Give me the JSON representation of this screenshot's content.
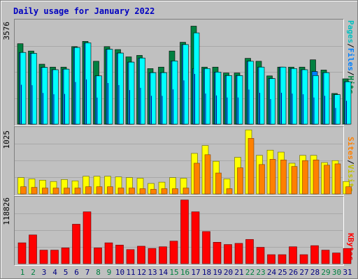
{
  "title": "Daily usage for January 2022",
  "panels": {
    "top": {
      "ymax_label": "3576",
      "legend": [
        "Pages",
        "Files",
        "Hits"
      ]
    },
    "middle": {
      "ymax_label": "1025",
      "legend": [
        "Sites",
        "Visits"
      ]
    },
    "bottom": {
      "ymax_label": "118826",
      "legend": [
        "KBytes"
      ]
    }
  },
  "legend_sep": "/",
  "colors": {
    "hits": "#008040",
    "files": "#0080ff",
    "pages": "#00ffff",
    "visits": "#ffff00",
    "sites": "#ff8000",
    "kbytes": "#ff0000",
    "weekend": "#008040",
    "weekday": "#000080"
  },
  "chart_data": [
    {
      "type": "bar",
      "title": "Daily usage for January 2022",
      "categories": [
        "1",
        "2",
        "3",
        "4",
        "5",
        "6",
        "7",
        "8",
        "9",
        "10",
        "11",
        "12",
        "13",
        "14",
        "15",
        "16",
        "17",
        "18",
        "19",
        "20",
        "21",
        "22",
        "23",
        "24",
        "25",
        "26",
        "27",
        "28",
        "29",
        "30",
        "31"
      ],
      "weekend_days": [
        "1",
        "2",
        "8",
        "9",
        "15",
        "16",
        "22",
        "23",
        "29",
        "30"
      ],
      "ylim": [
        0,
        3576
      ],
      "series": [
        {
          "name": "Hits",
          "values": [
            2750,
            2500,
            2050,
            1950,
            1950,
            2650,
            2830,
            2150,
            2650,
            2550,
            2300,
            2350,
            1900,
            1950,
            2500,
            2800,
            3350,
            1950,
            1950,
            1750,
            1750,
            2250,
            2150,
            1650,
            1950,
            1950,
            1950,
            2200,
            1850,
            1050,
            1550
          ]
        },
        {
          "name": "Files",
          "values": [
            2450,
            2420,
            1940,
            1860,
            1880,
            2620,
            2780,
            1650,
            2560,
            2430,
            2120,
            2260,
            1760,
            1760,
            2160,
            2720,
            1900,
            1900,
            1780,
            1660,
            1660,
            2150,
            1950,
            1560,
            1950,
            1900,
            1860,
            1800,
            1760,
            1010,
            1450
          ]
        },
        {
          "name": "Pages",
          "values": [
            2450,
            2420,
            1940,
            1860,
            1880,
            2620,
            2780,
            1650,
            2560,
            2430,
            2120,
            2260,
            1760,
            1760,
            2160,
            2720,
            3120,
            1900,
            1780,
            1660,
            1660,
            2150,
            1950,
            1560,
            1950,
            1900,
            1860,
            1660,
            1760,
            1010,
            1450
          ]
        }
      ]
    },
    {
      "type": "bar",
      "categories": [
        "1",
        "2",
        "3",
        "4",
        "5",
        "6",
        "7",
        "8",
        "9",
        "10",
        "11",
        "12",
        "13",
        "14",
        "15",
        "16",
        "17",
        "18",
        "19",
        "20",
        "21",
        "22",
        "23",
        "24",
        "25",
        "26",
        "27",
        "28",
        "29",
        "30",
        "31"
      ],
      "ylim": [
        0,
        1025
      ],
      "series": [
        {
          "name": "Visits",
          "values": [
            250,
            230,
            210,
            190,
            220,
            200,
            270,
            270,
            270,
            260,
            250,
            240,
            160,
            180,
            250,
            240,
            620,
            740,
            500,
            230,
            560,
            980,
            590,
            670,
            640,
            470,
            590,
            590,
            480,
            510,
            190
          ]
        },
        {
          "name": "Sites",
          "values": [
            110,
            100,
            90,
            90,
            90,
            90,
            110,
            110,
            110,
            90,
            90,
            80,
            70,
            80,
            80,
            90,
            470,
            600,
            320,
            80,
            400,
            850,
            450,
            530,
            520,
            420,
            510,
            520,
            440,
            460,
            110
          ]
        }
      ]
    },
    {
      "type": "bar",
      "categories": [
        "1",
        "2",
        "3",
        "4",
        "5",
        "6",
        "7",
        "8",
        "9",
        "10",
        "11",
        "12",
        "13",
        "14",
        "15",
        "16",
        "17",
        "18",
        "19",
        "20",
        "21",
        "22",
        "23",
        "24",
        "25",
        "26",
        "27",
        "28",
        "29",
        "30",
        "31"
      ],
      "ylim": [
        0,
        118826
      ],
      "series": [
        {
          "name": "KBytes",
          "values": [
            37000,
            51000,
            24000,
            24000,
            28000,
            70000,
            92000,
            28000,
            37000,
            33000,
            25000,
            31000,
            27000,
            30000,
            40000,
            113000,
            92000,
            57000,
            38000,
            34000,
            36000,
            43000,
            29000,
            16000,
            16000,
            30000,
            16000,
            32000,
            24000,
            19000,
            27000
          ]
        }
      ]
    }
  ]
}
